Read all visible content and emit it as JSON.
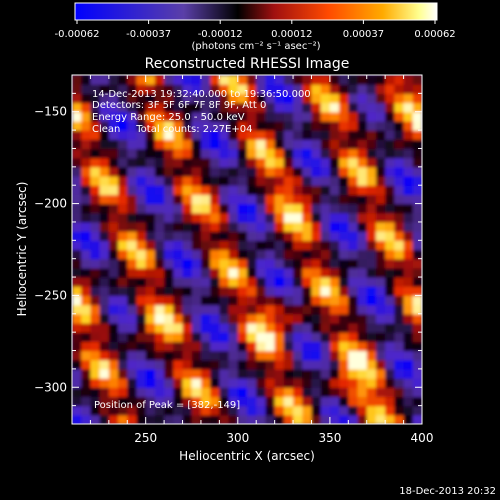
{
  "colorbar": {
    "ticks": [
      "-0.00062",
      "-0.00037",
      "-0.00012",
      "0.00012",
      "0.00037",
      "0.00062"
    ],
    "units_label": "(photons cm⁻² s⁻¹ asec⁻²)",
    "colors": [
      "#0000ff",
      "#5a3fa8",
      "#000000",
      "#a01010",
      "#ff4a00",
      "#ffaa00",
      "#ffff90",
      "#ffffff"
    ]
  },
  "chart_data": {
    "type": "heatmap",
    "title": "Reconstructed RHESSI Image",
    "xlabel": "Heliocentric X (arcsec)",
    "ylabel": "Heliocentric Y (arcsec)",
    "xlim": [
      210,
      400
    ],
    "ylim": [
      -320,
      -130
    ],
    "xticks": [
      250,
      300,
      350,
      400
    ],
    "yticks": [
      -300,
      -250,
      -200,
      -150
    ],
    "value_range": [
      -0.00062,
      0.00062
    ],
    "peak": [
      382,
      -149
    ],
    "annotations": [
      "14-Dec-2013 19:32:40.000 to 19:36:50.000",
      "Detectors: 3F 5F 6F 7F 8F 9F, Att 0",
      "Energy Range: 25.0 - 50.0 keV",
      "Clean     Total counts: 2.27E+04"
    ],
    "peak_label": "Position of Peak = [382,-149]"
  },
  "footer": {
    "timestamp": "18-Dec-2013 20:32"
  }
}
